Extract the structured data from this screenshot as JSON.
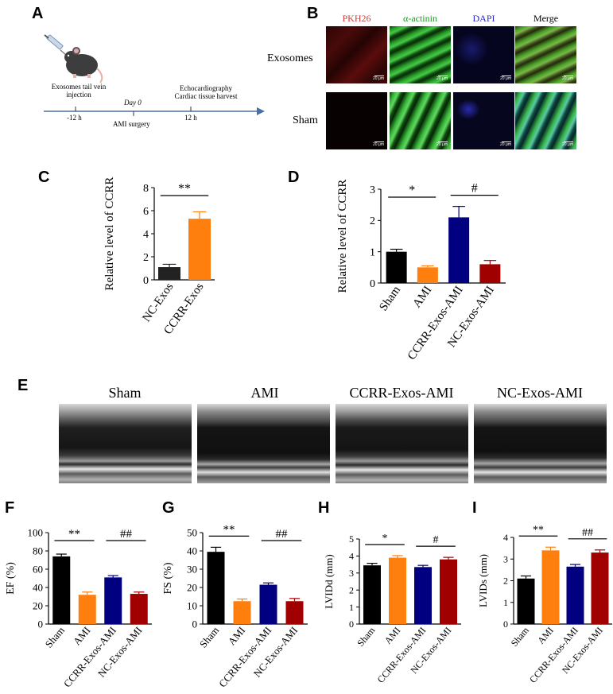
{
  "panel_labels": {
    "A": "A",
    "B": "B",
    "C": "C",
    "D": "D",
    "E": "E",
    "F": "F",
    "G": "G",
    "H": "H",
    "I": "I"
  },
  "panelA": {
    "injection": "Exosomes tail vein injection",
    "t1": "-12 h",
    "day0": "Day 0",
    "surgery": "AMI surgery",
    "echo": "Echocardiography",
    "harvest": "Cardiac tissue harvest",
    "t2": "12 h"
  },
  "panelB": {
    "columns": [
      "PKH26",
      "α-actinin",
      "DAPI",
      "Merge"
    ],
    "column_colors": [
      "#d23c3c",
      "#1a9a1a",
      "#2a2ad0",
      "#000000"
    ],
    "rows": [
      "Exosomes",
      "Sham"
    ],
    "scale": "20 μm"
  },
  "panelE": {
    "labels": [
      "Sham",
      "AMI",
      "CCRR-Exos-AMI",
      "NC-Exos-AMI"
    ]
  },
  "chart_data": [
    {
      "id": "C",
      "type": "bar",
      "ylabel": "Relative level of CCRR",
      "categories": [
        "NC-Exos",
        "CCRR-Exos"
      ],
      "values": [
        1.1,
        5.3
      ],
      "errors": [
        0.25,
        0.6
      ],
      "colors": [
        "#222222",
        "#ff7f0e"
      ],
      "ylim": [
        0,
        8
      ],
      "yticks": [
        0,
        2,
        4,
        6,
        8
      ],
      "sig": [
        {
          "from": 0,
          "to": 1,
          "label": "**"
        }
      ]
    },
    {
      "id": "D",
      "type": "bar",
      "ylabel": "Relative level of CCRR",
      "categories": [
        "Sham",
        "AMI",
        "CCRR-Exos-AMI",
        "NC-Exos-AMI"
      ],
      "values": [
        1.0,
        0.5,
        2.1,
        0.6
      ],
      "errors": [
        0.08,
        0.05,
        0.35,
        0.12
      ],
      "colors": [
        "#000000",
        "#ff7f0e",
        "#000080",
        "#a00000"
      ],
      "ylim": [
        0,
        3
      ],
      "yticks": [
        0,
        1,
        2,
        3
      ],
      "sig": [
        {
          "from": 0,
          "to": 1,
          "label": "*"
        },
        {
          "from": 2,
          "to": 3,
          "label": "#"
        }
      ]
    },
    {
      "id": "F",
      "type": "bar",
      "ylabel": "EF (%)",
      "categories": [
        "Sham",
        "AMI",
        "CCRR-Exos-AMI",
        "NC-Exos-AMI"
      ],
      "values": [
        74,
        32,
        51,
        33
      ],
      "errors": [
        2.5,
        3,
        2,
        2
      ],
      "colors": [
        "#000000",
        "#ff7f0e",
        "#000080",
        "#a00000"
      ],
      "ylim": [
        0,
        100
      ],
      "yticks": [
        0,
        20,
        40,
        60,
        80,
        100
      ],
      "sig": [
        {
          "from": 0,
          "to": 1,
          "label": "**"
        },
        {
          "from": 2,
          "to": 3,
          "label": "##"
        }
      ]
    },
    {
      "id": "G",
      "type": "bar",
      "ylabel": "FS (%)",
      "categories": [
        "Sham",
        "AMI",
        "CCRR-Exos-AMI",
        "NC-Exos-AMI"
      ],
      "values": [
        39.5,
        12.5,
        21.5,
        12.5
      ],
      "errors": [
        2.5,
        1.2,
        1,
        1.5
      ],
      "colors": [
        "#000000",
        "#ff7f0e",
        "#000080",
        "#a00000"
      ],
      "ylim": [
        0,
        50
      ],
      "yticks": [
        0,
        10,
        20,
        30,
        40,
        50
      ],
      "sig": [
        {
          "from": 0,
          "to": 1,
          "label": "**"
        },
        {
          "from": 2,
          "to": 3,
          "label": "##"
        }
      ]
    },
    {
      "id": "H",
      "type": "bar",
      "ylabel": "LVIDd (mm)",
      "categories": [
        "Sham",
        "AMI",
        "CCRR-Exos-AMI",
        "NC-Exos-AMI"
      ],
      "values": [
        3.45,
        3.9,
        3.35,
        3.8
      ],
      "errors": [
        0.12,
        0.12,
        0.1,
        0.12
      ],
      "colors": [
        "#000000",
        "#ff7f0e",
        "#000080",
        "#a00000"
      ],
      "ylim": [
        0,
        5
      ],
      "yticks": [
        0,
        1,
        2,
        3,
        4,
        5
      ],
      "sig": [
        {
          "from": 0,
          "to": 1,
          "label": "*"
        },
        {
          "from": 2,
          "to": 3,
          "label": "#"
        }
      ]
    },
    {
      "id": "I",
      "type": "bar",
      "ylabel": "LVIDs (mm)",
      "categories": [
        "Sham",
        "AMI",
        "CCRR-Exos-AMI",
        "NC-Exos-AMI"
      ],
      "values": [
        2.1,
        3.4,
        2.65,
        3.3
      ],
      "errors": [
        0.12,
        0.15,
        0.1,
        0.12
      ],
      "colors": [
        "#000000",
        "#ff7f0e",
        "#000080",
        "#a00000"
      ],
      "ylim": [
        0,
        4
      ],
      "yticks": [
        0,
        1,
        2,
        3,
        4
      ],
      "sig": [
        {
          "from": 0,
          "to": 1,
          "label": "**"
        },
        {
          "from": 2,
          "to": 3,
          "label": "##"
        }
      ]
    }
  ]
}
